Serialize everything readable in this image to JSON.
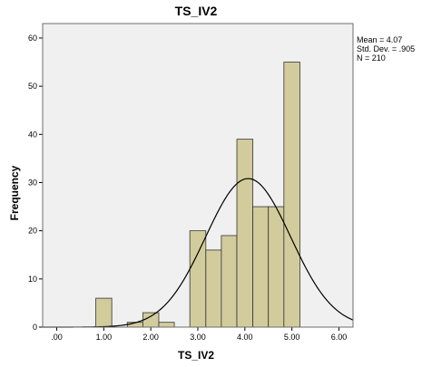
{
  "chart_data": {
    "type": "bar",
    "title": "TS_IV2",
    "xlabel": "TS_IV2",
    "ylabel": "Frequency",
    "xlim": [
      -0.3,
      6.3
    ],
    "ylim": [
      0,
      63
    ],
    "x_ticks": [
      {
        "value": 0,
        "label": ".00"
      },
      {
        "value": 1,
        "label": "1.00"
      },
      {
        "value": 2,
        "label": "2.00"
      },
      {
        "value": 3,
        "label": "3.00"
      },
      {
        "value": 4,
        "label": "4.00"
      },
      {
        "value": 5,
        "label": "5.00"
      },
      {
        "value": 6,
        "label": "6.00"
      }
    ],
    "y_ticks": [
      {
        "value": 0,
        "label": "0"
      },
      {
        "value": 10,
        "label": "10"
      },
      {
        "value": 20,
        "label": "20"
      },
      {
        "value": 30,
        "label": "30"
      },
      {
        "value": 40,
        "label": "40"
      },
      {
        "value": 50,
        "label": "50"
      },
      {
        "value": 60,
        "label": "60"
      }
    ],
    "bins": [
      {
        "from": 0.83,
        "to": 1.17,
        "value": 6
      },
      {
        "from": 1.5,
        "to": 1.83,
        "value": 1
      },
      {
        "from": 1.83,
        "to": 2.17,
        "value": 3
      },
      {
        "from": 2.17,
        "to": 2.5,
        "value": 1
      },
      {
        "from": 2.83,
        "to": 3.17,
        "value": 20
      },
      {
        "from": 3.17,
        "to": 3.5,
        "value": 16
      },
      {
        "from": 3.5,
        "to": 3.83,
        "value": 19
      },
      {
        "from": 3.83,
        "to": 4.17,
        "value": 39
      },
      {
        "from": 4.17,
        "to": 4.5,
        "value": 25
      },
      {
        "from": 4.5,
        "to": 4.83,
        "value": 25
      },
      {
        "from": 4.83,
        "to": 5.17,
        "value": 55
      }
    ],
    "normal_curve": {
      "mean": 4.07,
      "sd": 0.905,
      "n": 210,
      "bin_width": 0.333
    },
    "stats": [
      "Mean = 4.07",
      "Std. Dev. = .905",
      "N = 210"
    ],
    "grid": false,
    "colors": {
      "bar_fill": "#d2cc9c",
      "bar_stroke": "#333333",
      "plot_bg": "#f0f0f0",
      "frame": "#6d6d6d",
      "curve": "#000000"
    }
  }
}
